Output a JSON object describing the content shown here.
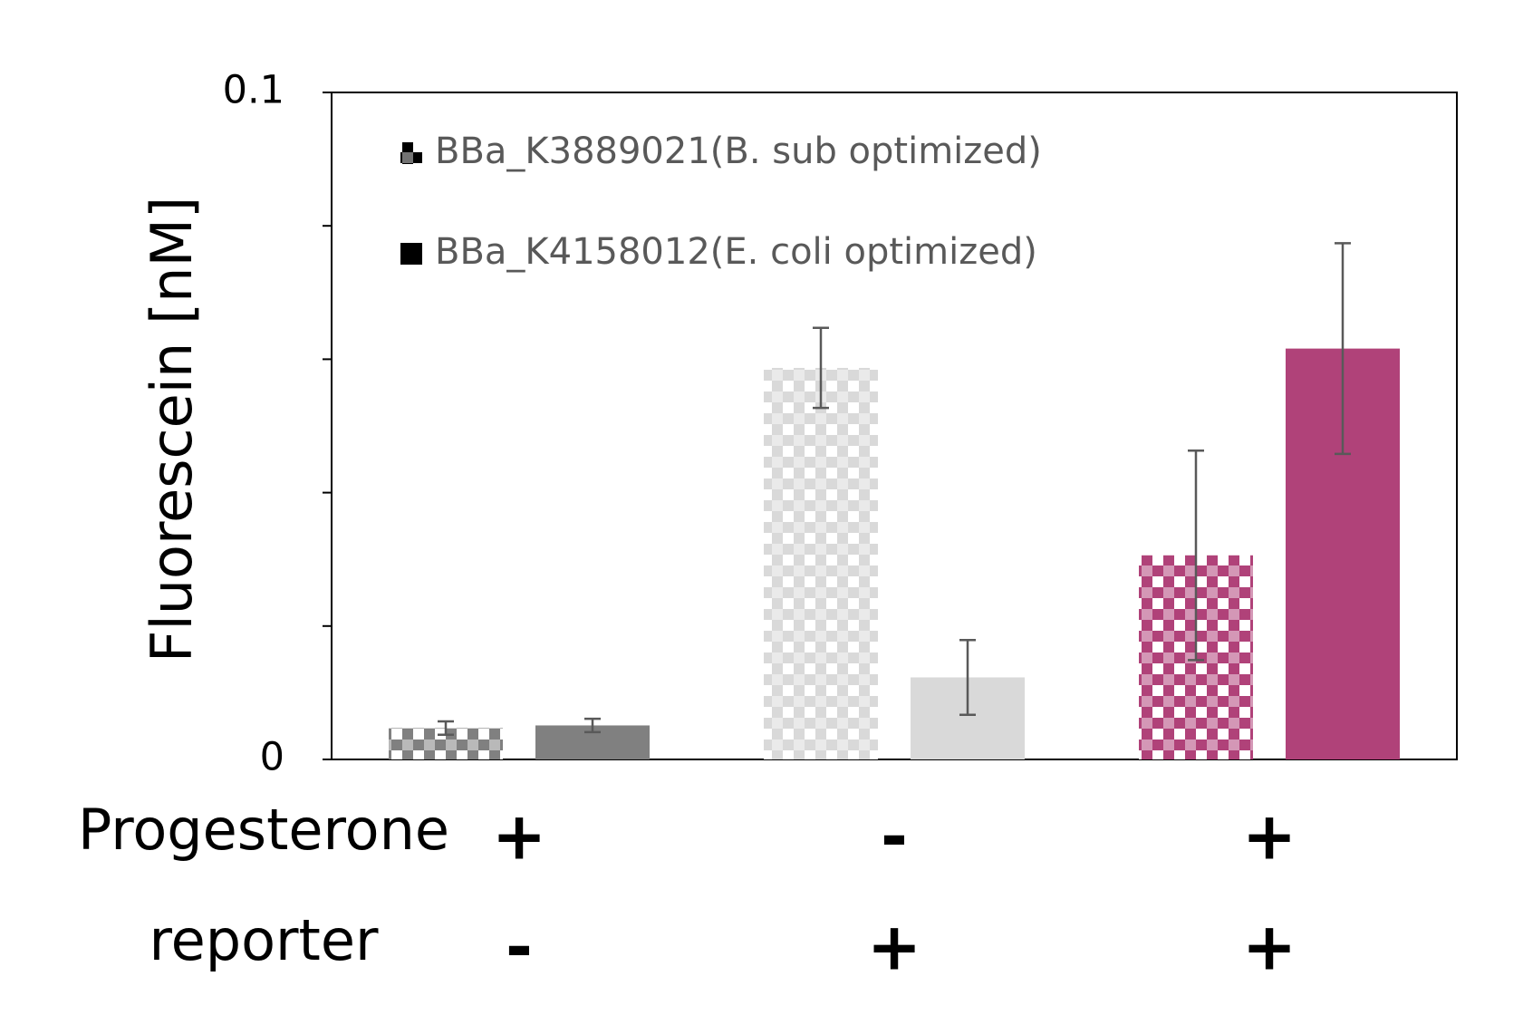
{
  "chart_data": {
    "type": "bar",
    "y_label": "Fluorescein [nM]",
    "ylim": [
      0,
      0.1
    ],
    "yticks": [
      0,
      0.1
    ],
    "minor_yticks": [
      0.02,
      0.04,
      0.06,
      0.08
    ],
    "condition_rows": [
      {
        "name": "Progesterone",
        "values": [
          "+",
          "-",
          "+"
        ]
      },
      {
        "name": "reporter",
        "values": [
          "-",
          "+",
          "+"
        ]
      }
    ],
    "category_colors": [
      "#808080",
      "#d9d9d9",
      "#b04279"
    ],
    "series": [
      {
        "name": "BBa_K3889021(B. sub optimized)",
        "pattern": "checker",
        "color": "#000000",
        "values": [
          0.0047,
          0.0587,
          0.0306
        ],
        "errors": [
          0.001,
          0.006,
          0.0157
        ]
      },
      {
        "name": "BBa_K4158012(E. coli optimized)",
        "pattern": "solid",
        "color": "#000000",
        "values": [
          0.0051,
          0.0123,
          0.0616
        ],
        "errors": [
          0.001,
          0.0056,
          0.0158
        ]
      }
    ],
    "error_bar_color": "#595959"
  }
}
